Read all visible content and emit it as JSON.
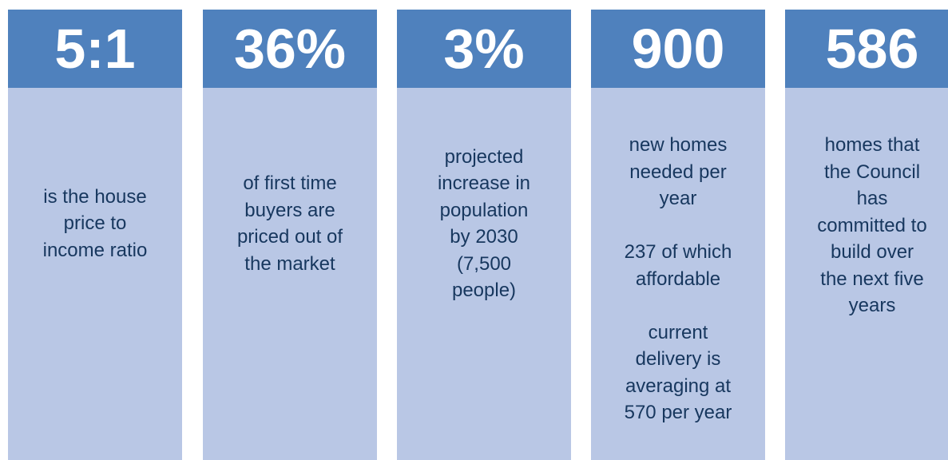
{
  "cards": [
    {
      "figure": "5:1",
      "paragraphs": [
        [
          "is the house",
          "price to",
          "income ratio"
        ]
      ]
    },
    {
      "figure": "36%",
      "paragraphs": [
        [
          "of first time",
          "buyers are",
          "priced out of",
          "the market"
        ]
      ]
    },
    {
      "figure": "3%",
      "paragraphs": [
        [
          "projected",
          "increase in",
          "population",
          "by 2030",
          "(7,500",
          "people)"
        ]
      ]
    },
    {
      "figure": "900",
      "paragraphs": [
        [
          "new homes",
          "needed per",
          "year"
        ],
        [
          "237 of which",
          "affordable"
        ],
        [
          "current",
          "delivery is",
          "averaging at",
          "570 per year"
        ]
      ]
    },
    {
      "figure": "586",
      "paragraphs": [
        [
          "homes that",
          "the Council",
          "has",
          "committed to",
          "build over",
          "the next five",
          "years"
        ]
      ]
    }
  ]
}
